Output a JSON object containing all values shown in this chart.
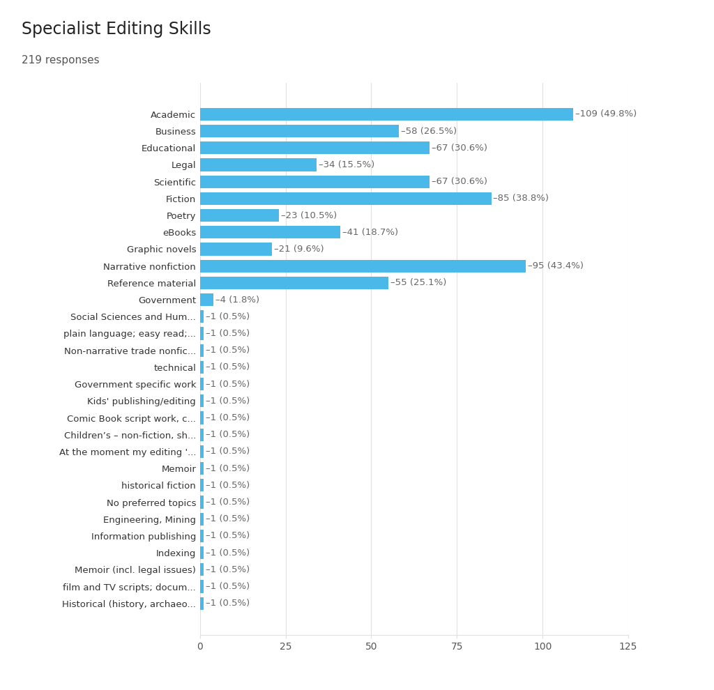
{
  "title": "Specialist Editing Skills",
  "subtitle": "219 responses",
  "bar_color": "#4ab8e8",
  "background_color": "#ffffff",
  "categories": [
    "Academic",
    "Business",
    "Educational",
    "Legal",
    "Scientific",
    "Fiction",
    "Poetry",
    "eBooks",
    "Graphic novels",
    "Narrative nonfiction",
    "Reference material",
    "Government",
    "Social Sciences and Hum...",
    "plain language; easy read;...",
    "Non-narrative trade nonfic...",
    "technical",
    "Government specific work",
    "Kids' publishing/editing",
    "Comic Book script work, c...",
    "Children’s – non-fiction, sh...",
    "At the moment my editing '...",
    "Memoir",
    "historical fiction",
    "No preferred topics",
    "Engineering, Mining",
    "Information publishing",
    "Indexing",
    "Memoir (incl. legal issues)",
    "film and TV scripts; docum...",
    "Historical (history, archaeo..."
  ],
  "values": [
    109,
    58,
    67,
    34,
    67,
    85,
    23,
    41,
    21,
    95,
    55,
    4,
    1,
    1,
    1,
    1,
    1,
    1,
    1,
    1,
    1,
    1,
    1,
    1,
    1,
    1,
    1,
    1,
    1,
    1
  ],
  "labels": [
    "109 (49.8%)",
    "58 (26.5%)",
    "67 (30.6%)",
    "34 (15.5%)",
    "67 (30.6%)",
    "85 (38.8%)",
    "23 (10.5%)",
    "41 (18.7%)",
    "21 (9.6%)",
    "95 (43.4%)",
    "55 (25.1%)",
    "4 (1.8%)",
    "1 (0.5%)",
    "1 (0.5%)",
    "1 (0.5%)",
    "1 (0.5%)",
    "1 (0.5%)",
    "1 (0.5%)",
    "1 (0.5%)",
    "1 (0.5%)",
    "1 (0.5%)",
    "1 (0.5%)",
    "1 (0.5%)",
    "1 (0.5%)",
    "1 (0.5%)",
    "1 (0.5%)",
    "1 (0.5%)",
    "1 (0.5%)",
    "1 (0.5%)",
    "1 (0.5%)"
  ],
  "xlim": [
    0,
    125
  ],
  "xticks": [
    0,
    25,
    50,
    75,
    100,
    125
  ],
  "grid_color": "#e0e0e0",
  "title_fontsize": 17,
  "subtitle_fontsize": 11,
  "label_fontsize": 9.5,
  "tick_fontsize": 10,
  "annotation_fontsize": 9.5
}
